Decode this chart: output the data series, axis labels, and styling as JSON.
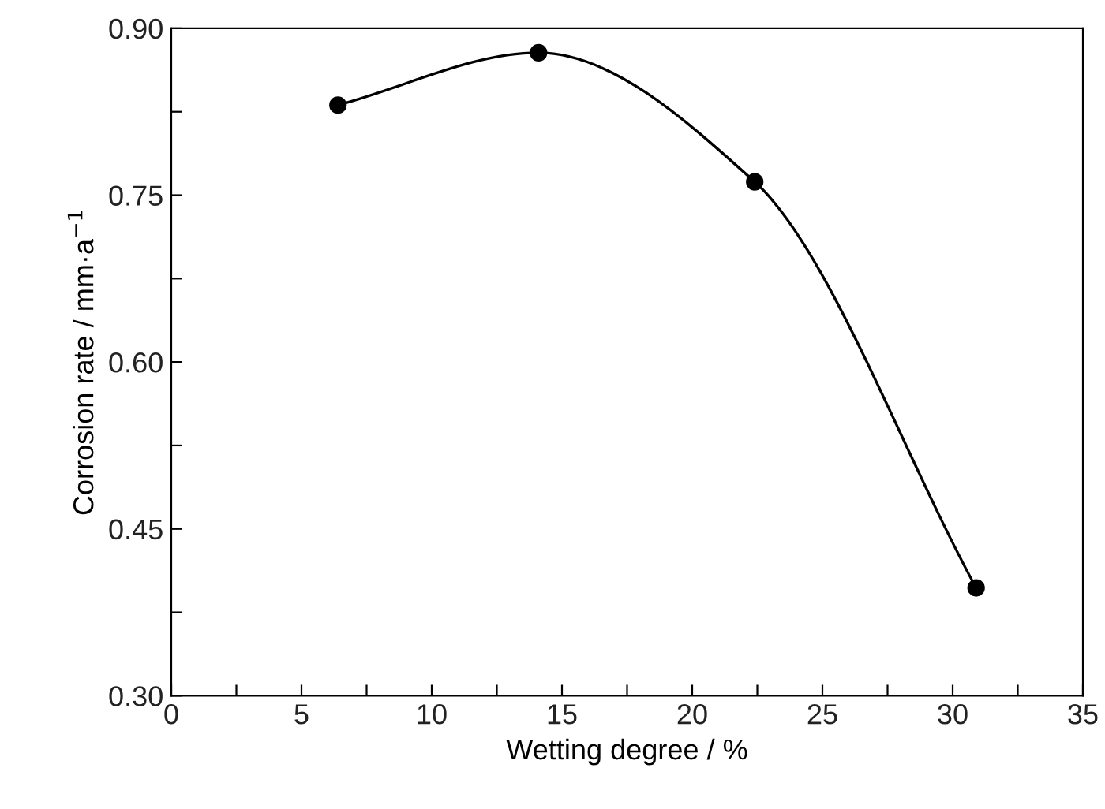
{
  "chart_data": {
    "type": "line",
    "xlabel": "Wetting degree / %",
    "ylabel": "Corrosion rate / mm·a$^{−1}$",
    "x": [
      6.4,
      14.1,
      22.4,
      30.9
    ],
    "series": [
      {
        "color": "#000000",
        "values": [
          0.831,
          0.878,
          0.762,
          0.397
        ]
      }
    ],
    "marker": "circle",
    "line_style": "solid",
    "xlim": [
      0,
      35
    ],
    "ylim": [
      0.3,
      0.9
    ],
    "xticks": [
      0,
      {
        "value": 2.5,
        "label": null
      },
      5,
      {
        "value": 7.5,
        "label": null
      },
      10,
      {
        "value": 12.5,
        "label": null
      },
      15,
      {
        "value": 17.5,
        "label": null
      },
      20,
      {
        "value": 22.5,
        "label": null
      },
      25,
      {
        "value": 27.5,
        "label": null
      },
      30,
      {
        "value": 32.5,
        "label": null
      },
      35
    ],
    "yticks": [
      {
        "value": 0.3,
        "label": "0.30"
      },
      {
        "value": 0.375,
        "label": null
      },
      {
        "value": 0.45,
        "label": "0.45"
      },
      {
        "value": 0.525,
        "label": null
      },
      {
        "value": 0.6,
        "label": "0.60"
      },
      {
        "value": 0.675,
        "label": null
      },
      {
        "value": 0.75,
        "label": "0.75"
      },
      {
        "value": 0.825,
        "label": null
      },
      {
        "value": 0.9,
        "label": "0.90"
      }
    ]
  }
}
